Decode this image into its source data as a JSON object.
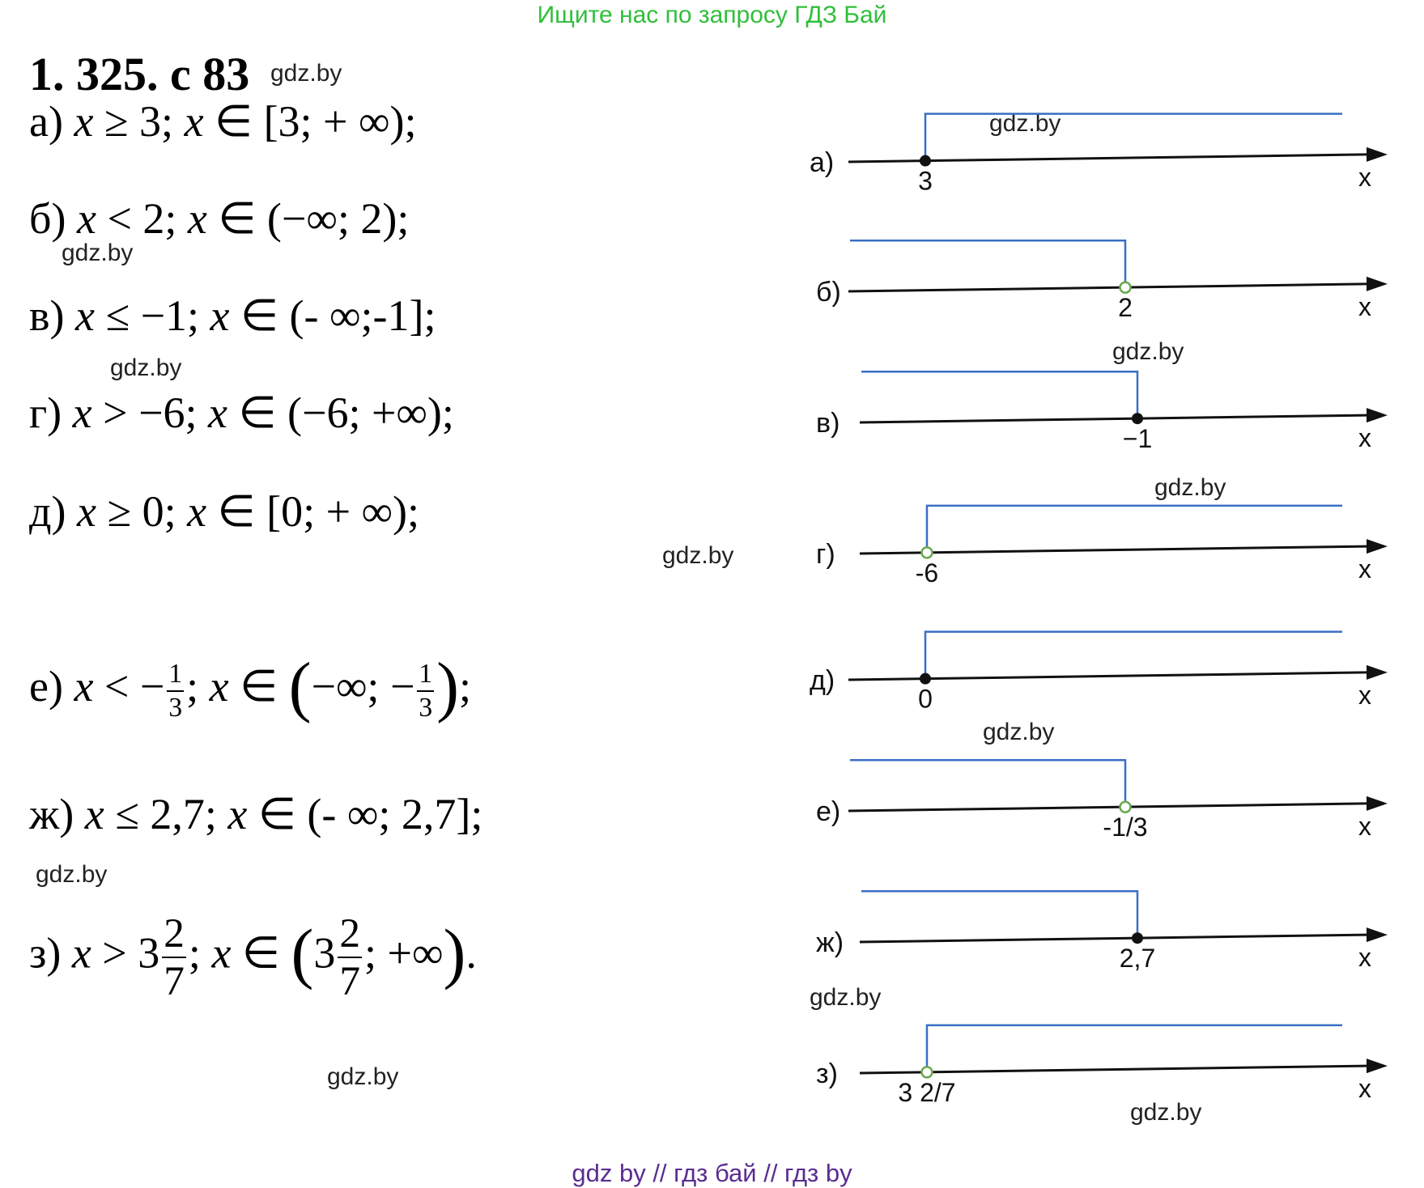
{
  "banner": "Ищите нас по запросу ГДЗ Бай",
  "title": "1. 325. с 83",
  "watermark": "gdz.by",
  "solutions": {
    "a": {
      "label": "а)",
      "ineq_var": "x",
      "ineq_rest": " ≥ 3; ",
      "in_var": "x",
      "in_rest": " ∈ [3; + ∞);"
    },
    "b": {
      "label": "б)",
      "ineq_var": "x",
      "ineq_rest": " < 2;  ",
      "in_var": "x",
      "in_rest": " ∈ (−∞; 2);"
    },
    "v": {
      "label": "в)",
      "ineq_var": "x",
      "ineq_rest": " ≤ −1;  ",
      "in_var": "x",
      "in_rest": " ∈ (- ∞;-1];"
    },
    "g": {
      "label": "г)",
      "ineq_var": "x",
      "ineq_rest": " > −6;  ",
      "in_var": "x",
      "in_rest": " ∈ (−6; +∞);"
    },
    "d": {
      "label": "д)",
      "ineq_var": "x",
      "ineq_rest": " ≥ 0;   ",
      "in_var": "x",
      "in_rest": " ∈ [0; + ∞);"
    },
    "e": {
      "label": "е)",
      "ineq_var": "x",
      "ineq_rest": " < −",
      "frac_num": "1",
      "frac_den": "3",
      "sep": ";  ",
      "in_var": "x",
      "in_rest": " ∈ ",
      "lparen": "(",
      "inner": "−∞; −",
      "rparen": ")",
      "end": ";"
    },
    "zh": {
      "label": "ж)",
      "ineq_var": "x",
      "ineq_rest": " ≤ 2,7; ",
      "in_var": "x",
      "in_rest": " ∈ (- ∞; 2,7];"
    },
    "z": {
      "label": "з)",
      "ineq_var": "x",
      "ineq_rest": " > 3",
      "frac_num": "2",
      "frac_den": "7",
      "sep": ";  ",
      "in_var": "x",
      "in_rest": " ∈ ",
      "lparen": "(",
      "inner_whole": "3",
      "inner_tail": "; +∞",
      "rparen": ")",
      "end": "."
    }
  },
  "number_lines": [
    {
      "label": "а)",
      "point": "3",
      "point_style": "filled",
      "direction": "right",
      "axis": "x"
    },
    {
      "label": "б)",
      "point": "2",
      "point_style": "open",
      "direction": "left",
      "axis": "x"
    },
    {
      "label": "в)",
      "point": "−1",
      "point_style": "filled",
      "direction": "left",
      "axis": "x"
    },
    {
      "label": "г)",
      "point": "-6",
      "point_style": "open",
      "direction": "right",
      "axis": "x"
    },
    {
      "label": "д)",
      "point": "0",
      "point_style": "filled",
      "direction": "right",
      "axis": "x"
    },
    {
      "label": "е)",
      "point": "-1/3",
      "point_style": "open",
      "direction": "left",
      "axis": "x"
    },
    {
      "label": "ж)",
      "point": "2,7",
      "point_style": "filled",
      "direction": "left",
      "axis": "x"
    },
    {
      "label": "з)",
      "point": "3 2/7",
      "point_style": "open",
      "direction": "right",
      "axis": "x"
    }
  ],
  "colors": {
    "banner": "#2fbf3a",
    "footer": "#5a2d91",
    "hatch": "#3a6fc4",
    "open_point": "#6aa84f"
  },
  "footer": "gdz by  //  гдз бай  //  гдз by"
}
